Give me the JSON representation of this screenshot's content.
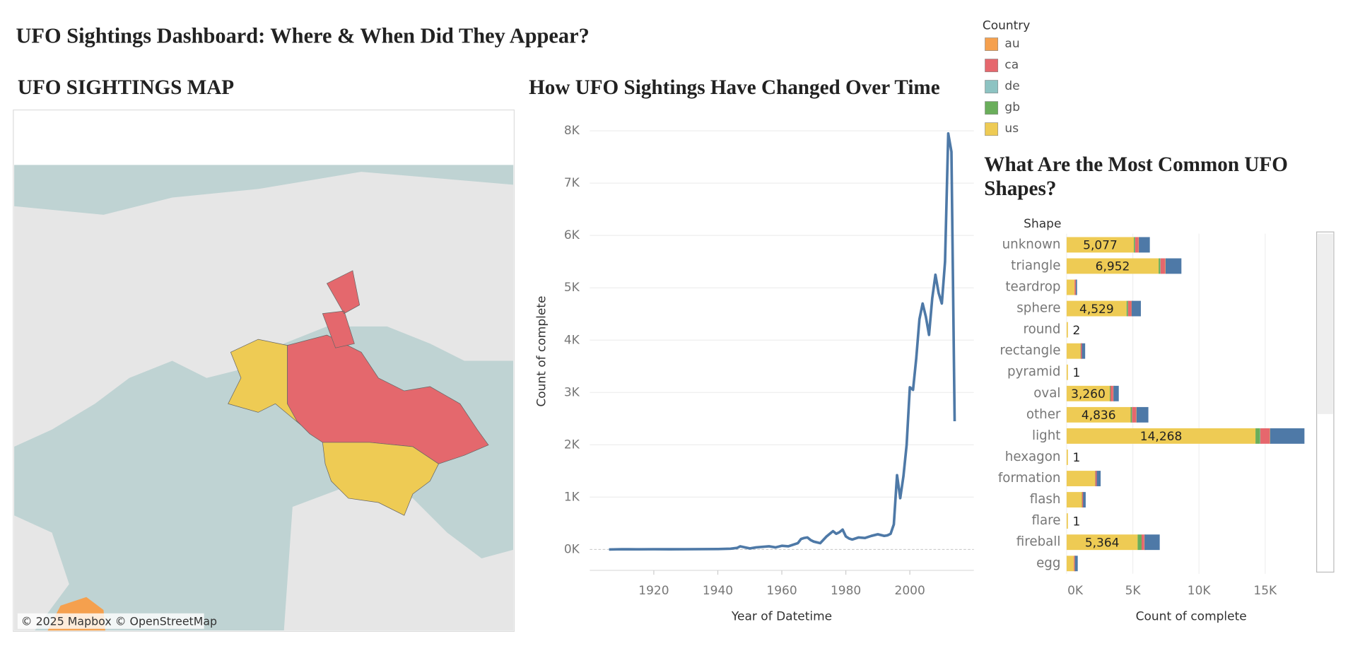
{
  "title": "UFO Sightings Dashboard: Where & When Did They Appear?",
  "map": {
    "title": "UFO SIGHTINGS MAP",
    "attribution": "© 2025 Mapbox © OpenStreetMap"
  },
  "legend_title": "Country",
  "chart_data": [
    {
      "type": "line",
      "title": "How UFO Sightings Have Changed Over Time",
      "x_label": "Year of Datetime",
      "y_label": "Count of complete",
      "x": [
        1906,
        1910,
        1915,
        1920,
        1925,
        1930,
        1935,
        1940,
        1944,
        1946,
        1947,
        1950,
        1952,
        1954,
        1956,
        1958,
        1960,
        1962,
        1964,
        1965,
        1966,
        1967,
        1968,
        1969,
        1970,
        1972,
        1974,
        1975,
        1976,
        1977,
        1978,
        1979,
        1980,
        1981,
        1982,
        1984,
        1986,
        1988,
        1990,
        1992,
        1993,
        1994,
        1995,
        1996,
        1997,
        1998,
        1999,
        2000,
        2001,
        2002,
        2003,
        2004,
        2005,
        2006,
        2007,
        2008,
        2009,
        2010,
        2011,
        2012,
        2013,
        2014
      ],
      "series": [
        {
          "color": "#4e79a7",
          "values": [
            0,
            5,
            3,
            5,
            4,
            5,
            6,
            8,
            15,
            30,
            60,
            20,
            40,
            50,
            60,
            40,
            70,
            60,
            100,
            120,
            200,
            220,
            230,
            180,
            150,
            120,
            250,
            300,
            350,
            300,
            330,
            380,
            250,
            210,
            190,
            230,
            220,
            260,
            290,
            260,
            270,
            300,
            480,
            1420,
            980,
            1400,
            2000,
            3100,
            3050,
            3650,
            4400,
            4700,
            4450,
            4100,
            4800,
            5250,
            4900,
            4700,
            5500,
            7950,
            7600,
            2450
          ]
        }
      ],
      "xlim": [
        1900,
        2020
      ],
      "xticks": [
        1920,
        1940,
        1960,
        1980,
        2000
      ],
      "ylim": [
        -400,
        8300
      ],
      "yticks": [
        {
          "value": 0,
          "label": "0K"
        },
        {
          "value": 1000,
          "label": "1K"
        },
        {
          "value": 2000,
          "label": "2K"
        },
        {
          "value": 3000,
          "label": "3K"
        },
        {
          "value": 4000,
          "label": "4K"
        },
        {
          "value": 5000,
          "label": "5K"
        },
        {
          "value": 6000,
          "label": "6K"
        },
        {
          "value": 7000,
          "label": "7K"
        },
        {
          "value": 8000,
          "label": "8K"
        }
      ],
      "grid": true
    },
    {
      "type": "stacked_barh",
      "title": "What Are the Most Common UFO Shapes?",
      "category_label": "Shape",
      "x_label": "Count of complete",
      "categories": [
        "unknown",
        "triangle",
        "teardrop",
        "sphere",
        "round",
        "rectangle",
        "pyramid",
        "oval",
        "other",
        "light",
        "hexagon",
        "formation",
        "flash",
        "flare",
        "fireball",
        "egg"
      ],
      "series": [
        {
          "name": "au",
          "color": "#f5a04e",
          "values": [
            30,
            30,
            10,
            20,
            0,
            0,
            0,
            20,
            30,
            30,
            0,
            0,
            0,
            0,
            20,
            20
          ]
        },
        {
          "name": "ca",
          "color": "#e6676d",
          "values": [
            250,
            350,
            80,
            250,
            0,
            80,
            0,
            200,
            300,
            700,
            0,
            100,
            70,
            0,
            200,
            50
          ]
        },
        {
          "name": "de",
          "color": "#8dc3c2",
          "values": [
            20,
            20,
            0,
            10,
            0,
            0,
            0,
            0,
            10,
            20,
            0,
            0,
            0,
            0,
            0,
            0
          ]
        },
        {
          "name": "gb",
          "color": "#6aae5b",
          "values": [
            80,
            120,
            0,
            100,
            0,
            20,
            0,
            60,
            100,
            350,
            0,
            20,
            20,
            0,
            300,
            0
          ]
        },
        {
          "name": "us",
          "color": "#eecb54",
          "values": [
            5077,
            6952,
            600,
            4529,
            2,
            1050,
            1,
            3260,
            4836,
            14268,
            1,
            2150,
            1150,
            1,
            5364,
            550
          ],
          "value_labels": [
            "5,077",
            "6,952",
            null,
            "4,529",
            "2",
            null,
            "1",
            "3,260",
            "4,836",
            "14,268",
            "1",
            null,
            null,
            "1",
            "5,364",
            null
          ]
        },
        {
          "name": null,
          "color": "#4e79a7",
          "values": [
            830,
            1200,
            60,
            700,
            0,
            250,
            0,
            400,
            900,
            2600,
            0,
            300,
            200,
            0,
            1150,
            220
          ]
        }
      ],
      "xlim": [
        0,
        18500
      ],
      "xticks": [
        {
          "value": 0,
          "label": "0K"
        },
        {
          "value": 5000,
          "label": "5K"
        },
        {
          "value": 10000,
          "label": "10K"
        },
        {
          "value": 15000,
          "label": "15K"
        }
      ],
      "grid": true
    }
  ]
}
